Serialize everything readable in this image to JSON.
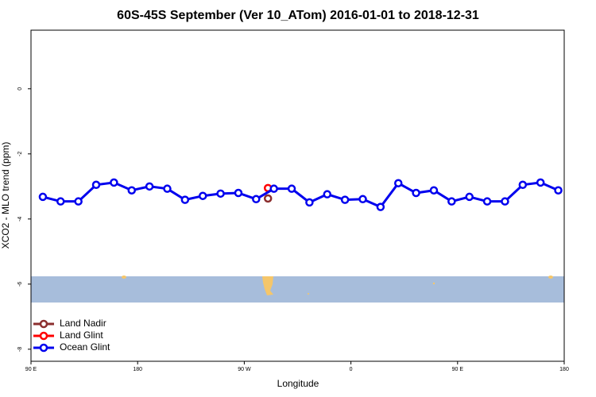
{
  "chart_data": {
    "type": "line",
    "title": "60S-45S September (Ver 10_ATom)   2016-01-01 to 2018-12-31",
    "x_label": "Longitude",
    "y_label": "XCO2 - MLO trend (ppm)",
    "xlim": [
      90,
      540
    ],
    "ylim": [
      -8.37,
      1.8
    ],
    "xticks": [
      {
        "value": 90,
        "label": "90 E"
      },
      180,
      {
        "value": 270,
        "label": "90 W"
      },
      {
        "value": 360,
        "label": "0"
      },
      {
        "value": 450,
        "label": "90 E"
      },
      {
        "value": 540,
        "label": "180"
      }
    ],
    "yticks": [
      0,
      -2,
      -4,
      -6,
      -8
    ],
    "legend": "bottom-left",
    "series": [
      {
        "name": "Land Nadir",
        "color": "#8b2e2e",
        "x": [
          290
        ],
        "values": [
          -3.37
        ]
      },
      {
        "name": "Land Glint",
        "color": "#ff0000",
        "x": [
          290
        ],
        "values": [
          -3.05
        ]
      },
      {
        "name": "Ocean Glint",
        "color": "#0000ee",
        "x": [
          100,
          115,
          130,
          145,
          160,
          175,
          190,
          205,
          220,
          235,
          250,
          265,
          280,
          295,
          310,
          325,
          340,
          355,
          370,
          385,
          400,
          415,
          430,
          445,
          460,
          475,
          490,
          505,
          520,
          535
        ],
        "values": [
          -3.32,
          -3.46,
          -3.46,
          -2.95,
          -2.88,
          -3.12,
          -3.0,
          -3.07,
          -3.41,
          -3.29,
          -3.22,
          -3.2,
          -3.39,
          -3.07,
          -3.07,
          -3.49,
          -3.24,
          -3.41,
          -3.39,
          -3.63,
          -2.9,
          -3.2,
          -3.12,
          -3.46,
          -3.32,
          -3.46,
          -3.46,
          -2.95,
          -2.88,
          -3.12
        ]
      }
    ]
  }
}
